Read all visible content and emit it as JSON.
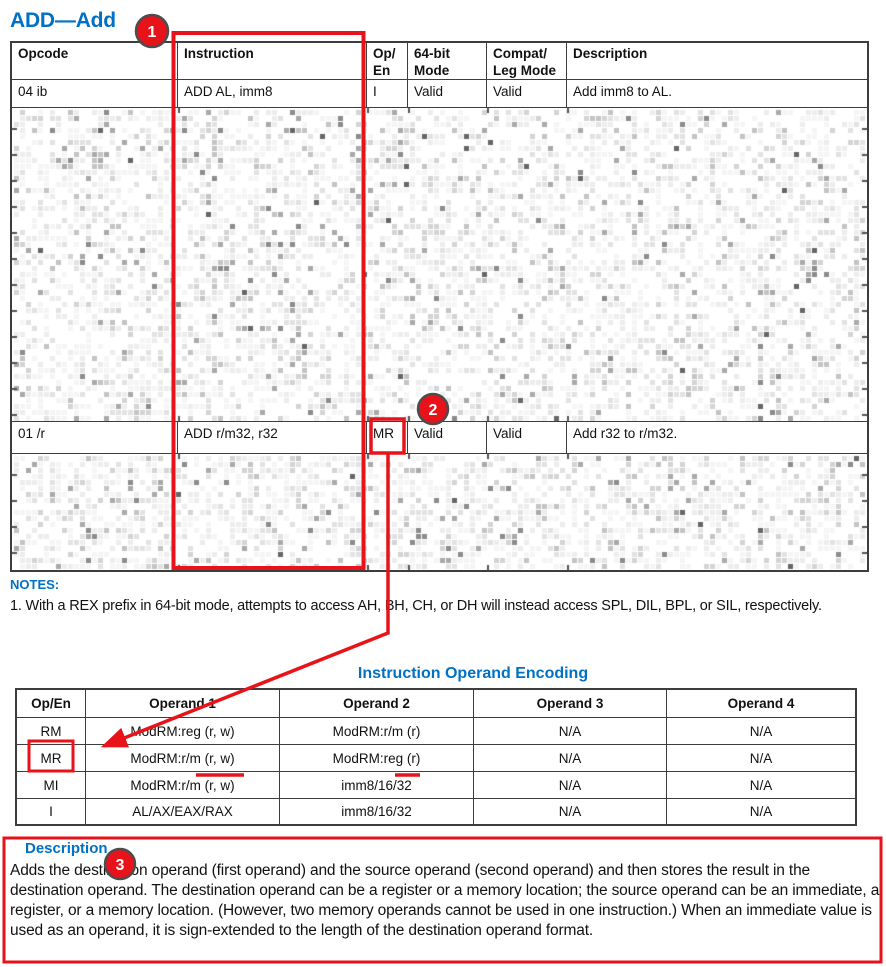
{
  "page_title": "ADD—Add",
  "annotations": {
    "badge1": "1",
    "badge2": "2",
    "badge3": "3"
  },
  "opcode_table": {
    "headers": [
      "Opcode",
      "Instruction",
      "Op/\nEn",
      "64-bit\nMode",
      "Compat/\nLeg Mode",
      "Description"
    ],
    "row_add_al": [
      "04 ib",
      "ADD AL, imm8",
      "I",
      "Valid",
      "Valid",
      "Add imm8 to AL."
    ],
    "row_add_rm32": [
      "01 /r",
      "ADD r/m32, r32",
      "MR",
      "Valid",
      "Valid",
      "Add r32 to r/m32."
    ]
  },
  "notes": {
    "heading": "NOTES:",
    "note1": "1. With a REX prefix in 64-bit mode, attempts to access AH, BH, CH, or DH will instead access SPL, DIL, BPL, or SIL, respectively."
  },
  "operand_encoding": {
    "title": "Instruction Operand Encoding",
    "headers": [
      "Op/En",
      "Operand 1",
      "Operand 2",
      "Operand 3",
      "Operand 4"
    ],
    "rows": [
      [
        "RM",
        "ModRM:reg (r, w)",
        "ModRM:r/m (r)",
        "N/A",
        "N/A"
      ],
      [
        "MR",
        "ModRM:r/m (r, w)",
        "ModRM:reg (r)",
        "N/A",
        "N/A"
      ],
      [
        "MI",
        "ModRM:r/m (r, w)",
        "imm8/16/32",
        "N/A",
        "N/A"
      ],
      [
        "I",
        "AL/AX/EAX/RAX",
        "imm8/16/32",
        "N/A",
        "N/A"
      ]
    ]
  },
  "description": {
    "heading": "Description",
    "body": "Adds the destination operand (first operand) and the source operand (second operand) and then stores the result in the destination operand. The destination operand can be a register or a memory location; the source operand can be an immediate, a register, or a memory location. (However, two memory operands cannot be used in one instruction.) When an immediate value is used as an operand, it is sign-extended to the length of the destination operand format."
  },
  "colors": {
    "accent_blue": "#0071c5",
    "annotation_red": "#e8121b",
    "border_gray": "#3d3d3d"
  }
}
